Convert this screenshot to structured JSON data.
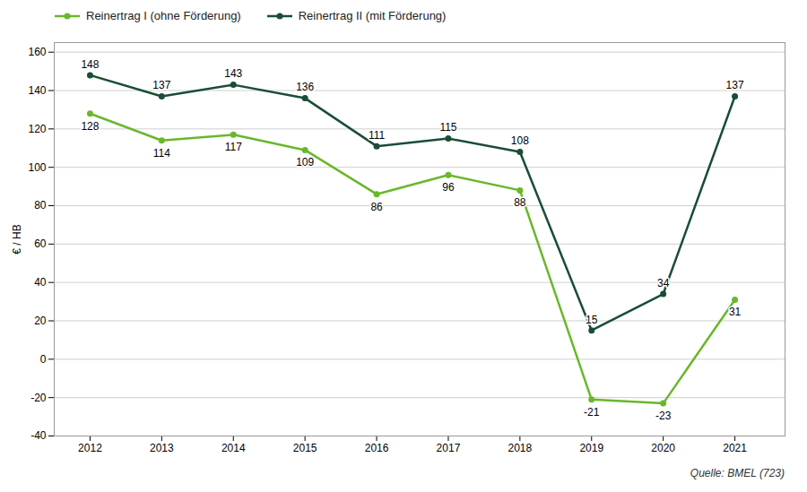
{
  "chart_data": {
    "type": "line",
    "x": [
      2012,
      2013,
      2014,
      2015,
      2016,
      2017,
      2018,
      2019,
      2020,
      2021
    ],
    "series": [
      {
        "name": "Reinertrag I (ohne Förderung)",
        "color": "#6AB72B",
        "marker": "circle",
        "values": [
          128,
          114,
          117,
          109,
          86,
          96,
          88,
          -21,
          -23,
          31
        ]
      },
      {
        "name": "Reinertrag II (mit Förderung)",
        "color": "#1A4D35",
        "marker": "circle",
        "values": [
          148,
          137,
          143,
          136,
          111,
          115,
          108,
          15,
          34,
          137
        ]
      }
    ],
    "ylabel": "€ / HB",
    "xlim": [
      2011.5,
      2021.7
    ],
    "xticks": [
      2012,
      2013,
      2014,
      2015,
      2016,
      2017,
      2018,
      2019,
      2020,
      2021
    ],
    "ylim": [
      -40,
      165
    ],
    "yticks": [
      -40,
      -20,
      0,
      20,
      40,
      60,
      80,
      100,
      120,
      140,
      160
    ],
    "grid": true,
    "legend": "upper left",
    "data_labels": true,
    "annotations": [
      "Quelle: BMEL (723)"
    ]
  }
}
